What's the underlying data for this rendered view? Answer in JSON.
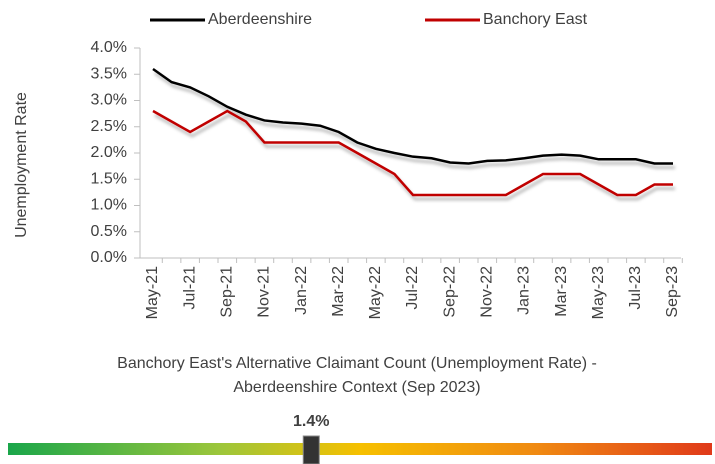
{
  "chart_data": {
    "type": "line",
    "y_label": "Unemployment Rate",
    "caption": [
      "Banchory East's Alternative Claimant Count (Unemployment Rate) -",
      "Aberdeenshire Context (Sep 2023)"
    ],
    "categories": [
      "May-21",
      null,
      "Jul-21",
      null,
      "Sep-21",
      null,
      "Nov-21",
      null,
      "Jan-22",
      null,
      "Mar-22",
      null,
      "May-22",
      null,
      "Jul-22",
      null,
      "Sep-22",
      null,
      "Nov-22",
      null,
      "Jan-23",
      null,
      "Mar-23",
      null,
      "May-23",
      null,
      "Jul-23",
      null,
      "Sep-23"
    ],
    "series": [
      {
        "name": "Aberdeenshire",
        "color": "#000000",
        "values": [
          3.6,
          3.35,
          3.25,
          3.08,
          2.88,
          2.73,
          2.62,
          2.58,
          2.56,
          2.52,
          2.4,
          2.2,
          2.08,
          2.0,
          1.93,
          1.9,
          1.82,
          1.8,
          1.85,
          1.86,
          1.9,
          1.95,
          1.97,
          1.95,
          1.88,
          1.88,
          1.88,
          1.8,
          1.8
        ]
      },
      {
        "name": "Banchory East",
        "color": "#c00000",
        "values": [
          2.8,
          2.6,
          2.4,
          2.6,
          2.8,
          2.6,
          2.2,
          2.2,
          2.2,
          2.2,
          2.2,
          2.0,
          1.8,
          1.6,
          1.2,
          1.2,
          1.2,
          1.2,
          1.2,
          1.2,
          1.4,
          1.6,
          1.6,
          1.6,
          1.4,
          1.2,
          1.2,
          1.4,
          1.4
        ]
      }
    ],
    "ylim": [
      0,
      4
    ],
    "yticks": [
      {
        "value": 0,
        "label": "0.0%"
      },
      {
        "value": 0.5,
        "label": "0.5%"
      },
      {
        "value": 1,
        "label": "1.0%"
      },
      {
        "value": 1.5,
        "label": "1.5%"
      },
      {
        "value": 2,
        "label": "2.0%"
      },
      {
        "value": 2.5,
        "label": "2.5%"
      },
      {
        "value": 3,
        "label": "3.0%"
      },
      {
        "value": 3.5,
        "label": "3.5%"
      },
      {
        "value": 4,
        "label": "4.0%"
      }
    ],
    "gauge": {
      "value": 1.4,
      "label": "1.4%",
      "lim": [
        0,
        3.25
      ]
    }
  }
}
